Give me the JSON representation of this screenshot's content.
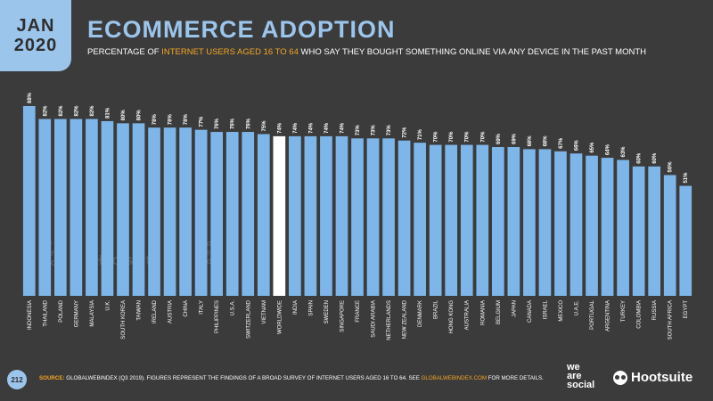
{
  "header": {
    "month": "JAN",
    "year": "2020",
    "title": "ECOMMERCE ADOPTION",
    "subtitle_pre": "PERCENTAGE OF ",
    "subtitle_highlight": "INTERNET USERS AGED 16 TO 64",
    "subtitle_post": " WHO SAY THEY BOUGHT SOMETHING ONLINE VIA ANY DEVICE IN THE PAST MONTH"
  },
  "footer": {
    "page_number": "212",
    "source_label": "SOURCE:",
    "source_text": " GLOBALWEBINDEX (Q3 2019). FIGURES REPRESENT THE FINDINGS OF A BROAD SURVEY OF INTERNET USERS AGED 16 TO 64. SEE ",
    "source_link": "GLOBALWEBINDEX.COM",
    "source_end": " FOR MORE DETAILS."
  },
  "logos": {
    "we_are_social": [
      "we",
      "are",
      "social"
    ],
    "hootsuite": "Hootsuite",
    "gwi": [
      "global",
      "web",
      "index"
    ]
  },
  "colors": {
    "bar": "#7eb6ea",
    "highlight_bar": "#ffffff",
    "accent": "#f5a623",
    "background": "#3b3b3b"
  },
  "chart_data": {
    "type": "bar",
    "highlight": "WORLDWIDE",
    "categories": [
      "INDONESIA",
      "THAILAND",
      "POLAND",
      "GERMANY",
      "MALAYSIA",
      "U.K.",
      "SOUTH KOREA",
      "TAIWAN",
      "IRELAND",
      "AUSTRIA",
      "CHINA",
      "ITALY",
      "PHILIPPINES",
      "U.S.A.",
      "SWITZERLAND",
      "VIETNAM",
      "WORLDWIDE",
      "INDIA",
      "SPAIN",
      "SWEDEN",
      "SINGAPORE",
      "FRANCE",
      "SAUDI ARABIA",
      "NETHERLANDS",
      "NEW ZEALAND",
      "DENMARK",
      "BRAZIL",
      "HONG KONG",
      "AUSTRALIA",
      "ROMANIA",
      "BELGIUM",
      "JAPAN",
      "CANADA",
      "ISRAEL",
      "MEXICO",
      "U.A.E.",
      "PORTUGAL",
      "ARGENTINA",
      "TURKEY",
      "COLOMBIA",
      "RUSSIA",
      "SOUTH AFRICA",
      "EGYPT"
    ],
    "values": [
      88,
      82,
      82,
      82,
      82,
      81,
      80,
      80,
      78,
      78,
      78,
      77,
      76,
      76,
      76,
      75,
      74,
      74,
      74,
      74,
      74,
      73,
      73,
      73,
      72,
      71,
      70,
      70,
      70,
      70,
      69,
      69,
      68,
      68,
      67,
      66,
      65,
      64,
      63,
      60,
      60,
      56,
      51
    ],
    "labels": [
      "88%",
      "82%",
      "82%",
      "82%",
      "82%",
      "81%",
      "80%",
      "80%",
      "78%",
      "78%",
      "78%",
      "77%",
      "76%",
      "76%",
      "76%",
      "75%",
      "74%",
      "74%",
      "74%",
      "74%",
      "74%",
      "73%",
      "73%",
      "73%",
      "72%",
      "71%",
      "70%",
      "70%",
      "70%",
      "70%",
      "69%",
      "69%",
      "68%",
      "68%",
      "67%",
      "66%",
      "65%",
      "64%",
      "63%",
      "60%",
      "60%",
      "56%",
      "51%"
    ],
    "ylim": [
      0,
      88
    ]
  }
}
